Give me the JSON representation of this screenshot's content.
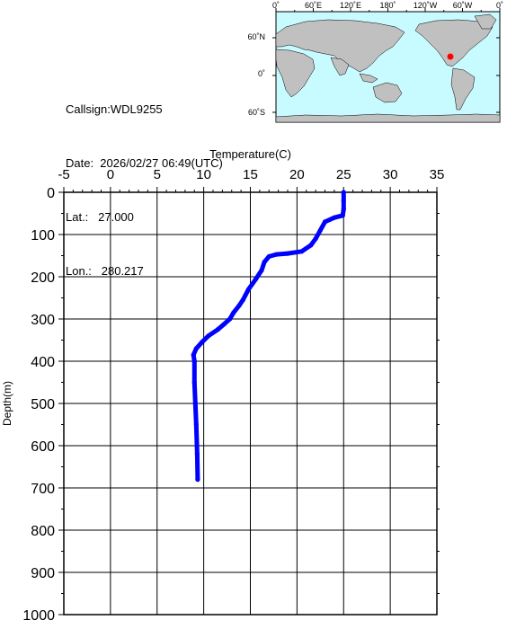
{
  "info": {
    "callsign": "Callsign:WDL9255",
    "date": "Date:  2026/02/27 06:49(UTC)",
    "lat": "Lat.:   27.000",
    "lon": "Lon.:   280.217"
  },
  "map": {
    "top_ticks": [
      "0˚",
      "60˚E",
      "120˚E",
      "180˚",
      "120˚W",
      "60˚W",
      "0˚"
    ],
    "lat_ticks": [
      "60˚N",
      "0˚",
      "60˚S"
    ],
    "ocean_color": "#c8fbff",
    "land_color": "#c0c0c0",
    "marker_color": "#ff0000"
  },
  "chart_data": {
    "type": "line",
    "title": "",
    "xlabel": "Temperature(C)",
    "ylabel": "Depth(m)",
    "xlim": [
      -5,
      35
    ],
    "ylim": [
      0,
      1000
    ],
    "x_ticks": [
      "-5",
      "0",
      "5",
      "10",
      "15",
      "20",
      "25",
      "30",
      "35"
    ],
    "y_ticks": [
      "0",
      "100",
      "200",
      "300",
      "400",
      "500",
      "600",
      "700",
      "800",
      "900",
      "1000"
    ],
    "grid": true,
    "series_color": "#0000ff",
    "series": [
      {
        "temperature": [
          25.0,
          25.0,
          25.0,
          24.9,
          24.0,
          23.0,
          22.5,
          22.0,
          21.5,
          20.5,
          19.0,
          17.8,
          17.0,
          16.5,
          16.2,
          15.6,
          14.8,
          14.2,
          13.8,
          13.2,
          12.8,
          12.2,
          11.5,
          10.5,
          9.8,
          9.2,
          8.9,
          9.0,
          9.0,
          9.1,
          9.2,
          9.3,
          9.35
        ],
        "depth": [
          0,
          20,
          40,
          55,
          60,
          70,
          90,
          110,
          125,
          140,
          145,
          147,
          152,
          165,
          185,
          205,
          230,
          255,
          268,
          285,
          300,
          312,
          325,
          340,
          355,
          370,
          385,
          400,
          450,
          500,
          550,
          620,
          680
        ]
      }
    ]
  }
}
